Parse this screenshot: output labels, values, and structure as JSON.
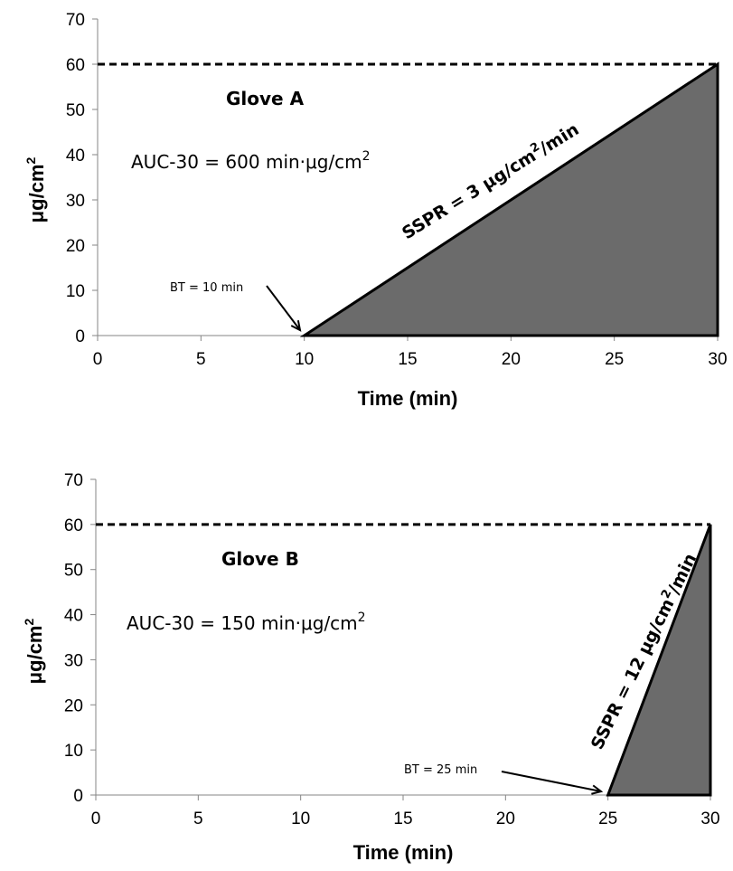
{
  "chart_data": [
    {
      "type": "area",
      "xlabel": "Time (min)",
      "ylabel": "μg/cm²",
      "xlim": [
        0,
        30
      ],
      "ylim": [
        0,
        70
      ],
      "xticks": [
        "0",
        "5",
        "10",
        "15",
        "20",
        "25",
        "30"
      ],
      "yticks": [
        "0",
        "10",
        "20",
        "30",
        "40",
        "50",
        "60",
        "70"
      ],
      "grid": false,
      "reference_line": {
        "y": 60,
        "style": "dashed"
      },
      "series": [
        {
          "x": [
            10,
            30,
            30
          ],
          "y": [
            0,
            60,
            0
          ]
        }
      ],
      "fill_color": "#6b6b6b",
      "labels": {
        "glove": "Glove A",
        "auc": "AUC-30 = 600 min·μg/cm²",
        "bt": "BT = 10 min",
        "sspr": "SSPR = 3 μg/cm²/min"
      }
    },
    {
      "type": "area",
      "xlabel": "Time (min)",
      "ylabel": "μg/cm²",
      "xlim": [
        0,
        30
      ],
      "ylim": [
        0,
        70
      ],
      "xticks": [
        "0",
        "5",
        "10",
        "15",
        "20",
        "25",
        "30"
      ],
      "yticks": [
        "0",
        "10",
        "20",
        "30",
        "40",
        "50",
        "60",
        "70"
      ],
      "grid": false,
      "reference_line": {
        "y": 60,
        "style": "dashed"
      },
      "series": [
        {
          "x": [
            25,
            30,
            30
          ],
          "y": [
            0,
            60,
            0
          ]
        }
      ],
      "fill_color": "#6b6b6b",
      "labels": {
        "glove": "Glove B",
        "auc": "AUC-30 = 150 min·μg/cm²",
        "bt": "BT = 25 min",
        "sspr": "SSPR = 12 μg/cm²/min"
      }
    }
  ]
}
